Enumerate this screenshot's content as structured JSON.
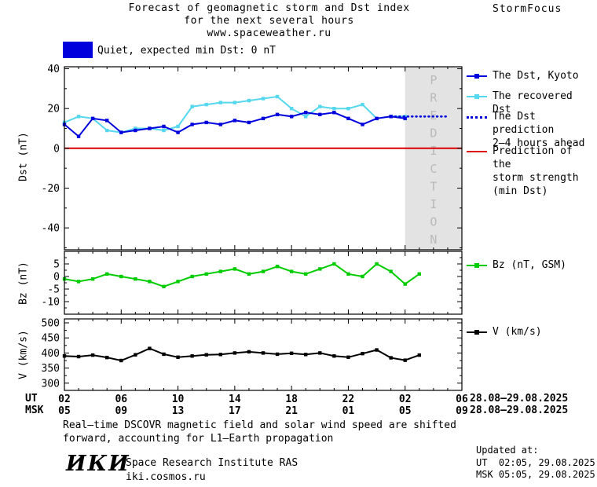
{
  "header": {
    "title_line1": "Forecast of geomagnetic storm and Dst index",
    "title_line2": "for the next several hours",
    "title_line3": "www.spaceweather.ru",
    "brand": "StormFocus"
  },
  "status": {
    "box_color": "#0000dd",
    "label": "Quiet, expected min Dst: 0 nT"
  },
  "legend": {
    "dst": "The Dst, Kyoto",
    "recovered": "The recovered Dst",
    "prediction_1": "The Dst prediction",
    "prediction_2": "2–4 hours ahead",
    "strength_1": "Prediction of the",
    "strength_2": "storm strength",
    "strength_3": "(min Dst)",
    "bz": "Bz (nT, GSM)",
    "v": "V (km/s)"
  },
  "axis_rows": {
    "ut_header": "UT",
    "msk_header": "MSK",
    "ut_date": "28.08–29.08.2025",
    "msk_date": "28.08–29.08.2025"
  },
  "footer": {
    "note_line1": "Real–time DSCOVR magnetic field and solar wind speed are shifted",
    "note_line2": "forward, accounting for L1–Earth propagation",
    "logo": "ИКИ",
    "institute": "Space Research Institute RAS",
    "site": "iki.cosmos.ru",
    "updated_label": "Updated at:",
    "updated_ut": "UT  02:05, 29.08.2025",
    "updated_msk": "MSK 05:05, 29.08.2025"
  },
  "chart_data": [
    {
      "type": "line",
      "panel": "dst",
      "ylabel": "Dst (nT)",
      "ylim": [
        -51,
        41
      ],
      "yticks": [
        40,
        20,
        0,
        -20,
        -40
      ],
      "yminor_step": 10,
      "xlim": [
        2,
        30
      ],
      "xticks": [
        2,
        6,
        10,
        14,
        18,
        22,
        26,
        30
      ],
      "xtick_labels_ut": [
        "02",
        "06",
        "10",
        "14",
        "18",
        "22",
        "02",
        "06"
      ],
      "xtick_labels_msk": [
        "05",
        "09",
        "13",
        "17",
        "21",
        "01",
        "05",
        "09"
      ],
      "prediction_band": {
        "x0": 26,
        "x1": 30,
        "label": "PREDICTION",
        "fill": "#e3e3e3",
        "text_color": "#b9b9b9"
      },
      "series": [
        {
          "name": "Prediction of the storm strength (min Dst)",
          "color": "#dd0000",
          "style": "solid",
          "x": [
            2,
            30
          ],
          "values": [
            0,
            0
          ]
        },
        {
          "name": "The recovered Dst",
          "color": "#55d8ee",
          "marker": "square",
          "x": [
            2,
            3,
            4,
            5,
            6,
            7,
            8,
            9,
            10,
            11,
            12,
            13,
            14,
            15,
            16,
            17,
            18,
            19,
            20,
            21,
            22,
            23,
            24,
            25,
            26
          ],
          "values": [
            13,
            16,
            15,
            9,
            8,
            10,
            10,
            9,
            11,
            21,
            22,
            23,
            23,
            24,
            25,
            26,
            20,
            16,
            21,
            20,
            20,
            22,
            15,
            16,
            16
          ]
        },
        {
          "name": "The Dst, Kyoto",
          "color": "#0000dd",
          "marker": "square",
          "x": [
            2,
            3,
            4,
            5,
            6,
            7,
            8,
            9,
            10,
            11,
            12,
            13,
            14,
            15,
            16,
            17,
            18,
            19,
            20,
            21,
            22,
            23,
            24,
            25,
            26
          ],
          "values": [
            12,
            6,
            15,
            14,
            8,
            9,
            10,
            11,
            8,
            12,
            13,
            12,
            14,
            13,
            15,
            17,
            16,
            18,
            17,
            18,
            15,
            12,
            15,
            16,
            15
          ]
        },
        {
          "name": "The Dst prediction 2–4 hours ahead",
          "color": "#0000dd",
          "style": "dotted",
          "x": [
            25.3,
            29
          ],
          "values": [
            16,
            16
          ]
        }
      ]
    },
    {
      "type": "line",
      "panel": "bz",
      "ylabel": "Bz (nT)",
      "ylim": [
        -15,
        10
      ],
      "yticks": [
        5,
        0,
        -5,
        -10
      ],
      "yminor_step": 2.5,
      "xlim": [
        2,
        30
      ],
      "xticks": [
        2,
        6,
        10,
        14,
        18,
        22,
        26,
        30
      ],
      "series": [
        {
          "name": "Bz (nT, GSM)",
          "color": "#00cc00",
          "marker": "square",
          "x": [
            2,
            3,
            4,
            5,
            6,
            7,
            8,
            9,
            10,
            11,
            12,
            13,
            14,
            15,
            16,
            17,
            18,
            19,
            20,
            21,
            22,
            23,
            24,
            25,
            26,
            27
          ],
          "values": [
            -1,
            -2,
            -1,
            1,
            0,
            -1,
            -2,
            -4,
            -2,
            0,
            1,
            2,
            3,
            1,
            2,
            4,
            2,
            1,
            3,
            5,
            1,
            0,
            5,
            2,
            -3,
            1
          ]
        }
      ]
    },
    {
      "type": "line",
      "panel": "v",
      "ylabel": "V (km/s)",
      "ylim": [
        276,
        513
      ],
      "yticks": [
        500,
        450,
        400,
        350,
        300
      ],
      "yminor_step": 25,
      "xlim": [
        2,
        30
      ],
      "xticks": [
        2,
        6,
        10,
        14,
        18,
        22,
        26,
        30
      ],
      "series": [
        {
          "name": "V (km/s)",
          "color": "#000000",
          "marker": "square",
          "x": [
            2,
            3,
            4,
            5,
            6,
            7,
            8,
            9,
            10,
            11,
            12,
            13,
            14,
            15,
            16,
            17,
            18,
            19,
            20,
            21,
            22,
            23,
            24,
            25,
            26,
            27
          ],
          "values": [
            390,
            388,
            393,
            385,
            375,
            394,
            415,
            396,
            386,
            390,
            394,
            395,
            400,
            404,
            400,
            396,
            399,
            395,
            400,
            390,
            386,
            398,
            410,
            384,
            376,
            393
          ]
        }
      ]
    }
  ]
}
